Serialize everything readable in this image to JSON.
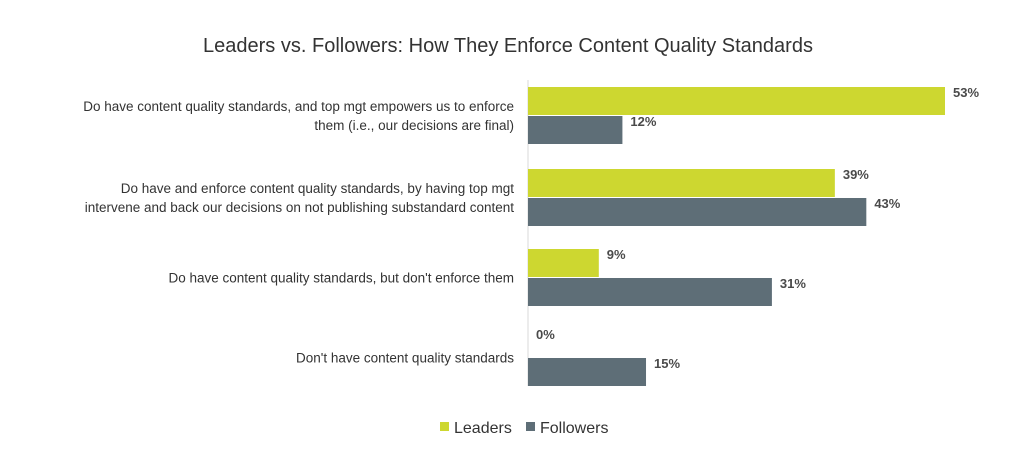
{
  "chart_data": {
    "type": "bar",
    "orientation": "horizontal",
    "title": "Leaders vs. Followers: How They Enforce Content Quality Standards",
    "categories": [
      [
        "Do have content quality standards, and top mgt empowers us to enforce",
        "them (i.e., our decisions are final)"
      ],
      [
        "Do have and enforce content quality standards, by having top mgt",
        "intervene and back our decisions on not publishing substandard content"
      ],
      [
        "Do have content quality standards, but don't enforce them"
      ],
      [
        "Don't have content quality standards"
      ]
    ],
    "series": [
      {
        "name": "Leaders",
        "color": "#cdd730",
        "values": [
          53,
          39,
          9,
          0
        ],
        "labels": [
          "53%",
          "39%",
          "9%",
          "0%"
        ]
      },
      {
        "name": "Followers",
        "color": "#5e6e77",
        "values": [
          12,
          43,
          31,
          15
        ],
        "labels": [
          "12%",
          "43%",
          "31%",
          "15%"
        ]
      }
    ],
    "xlim": [
      0,
      53
    ],
    "unit": "%",
    "legend_position": "bottom-center",
    "grid": false
  }
}
